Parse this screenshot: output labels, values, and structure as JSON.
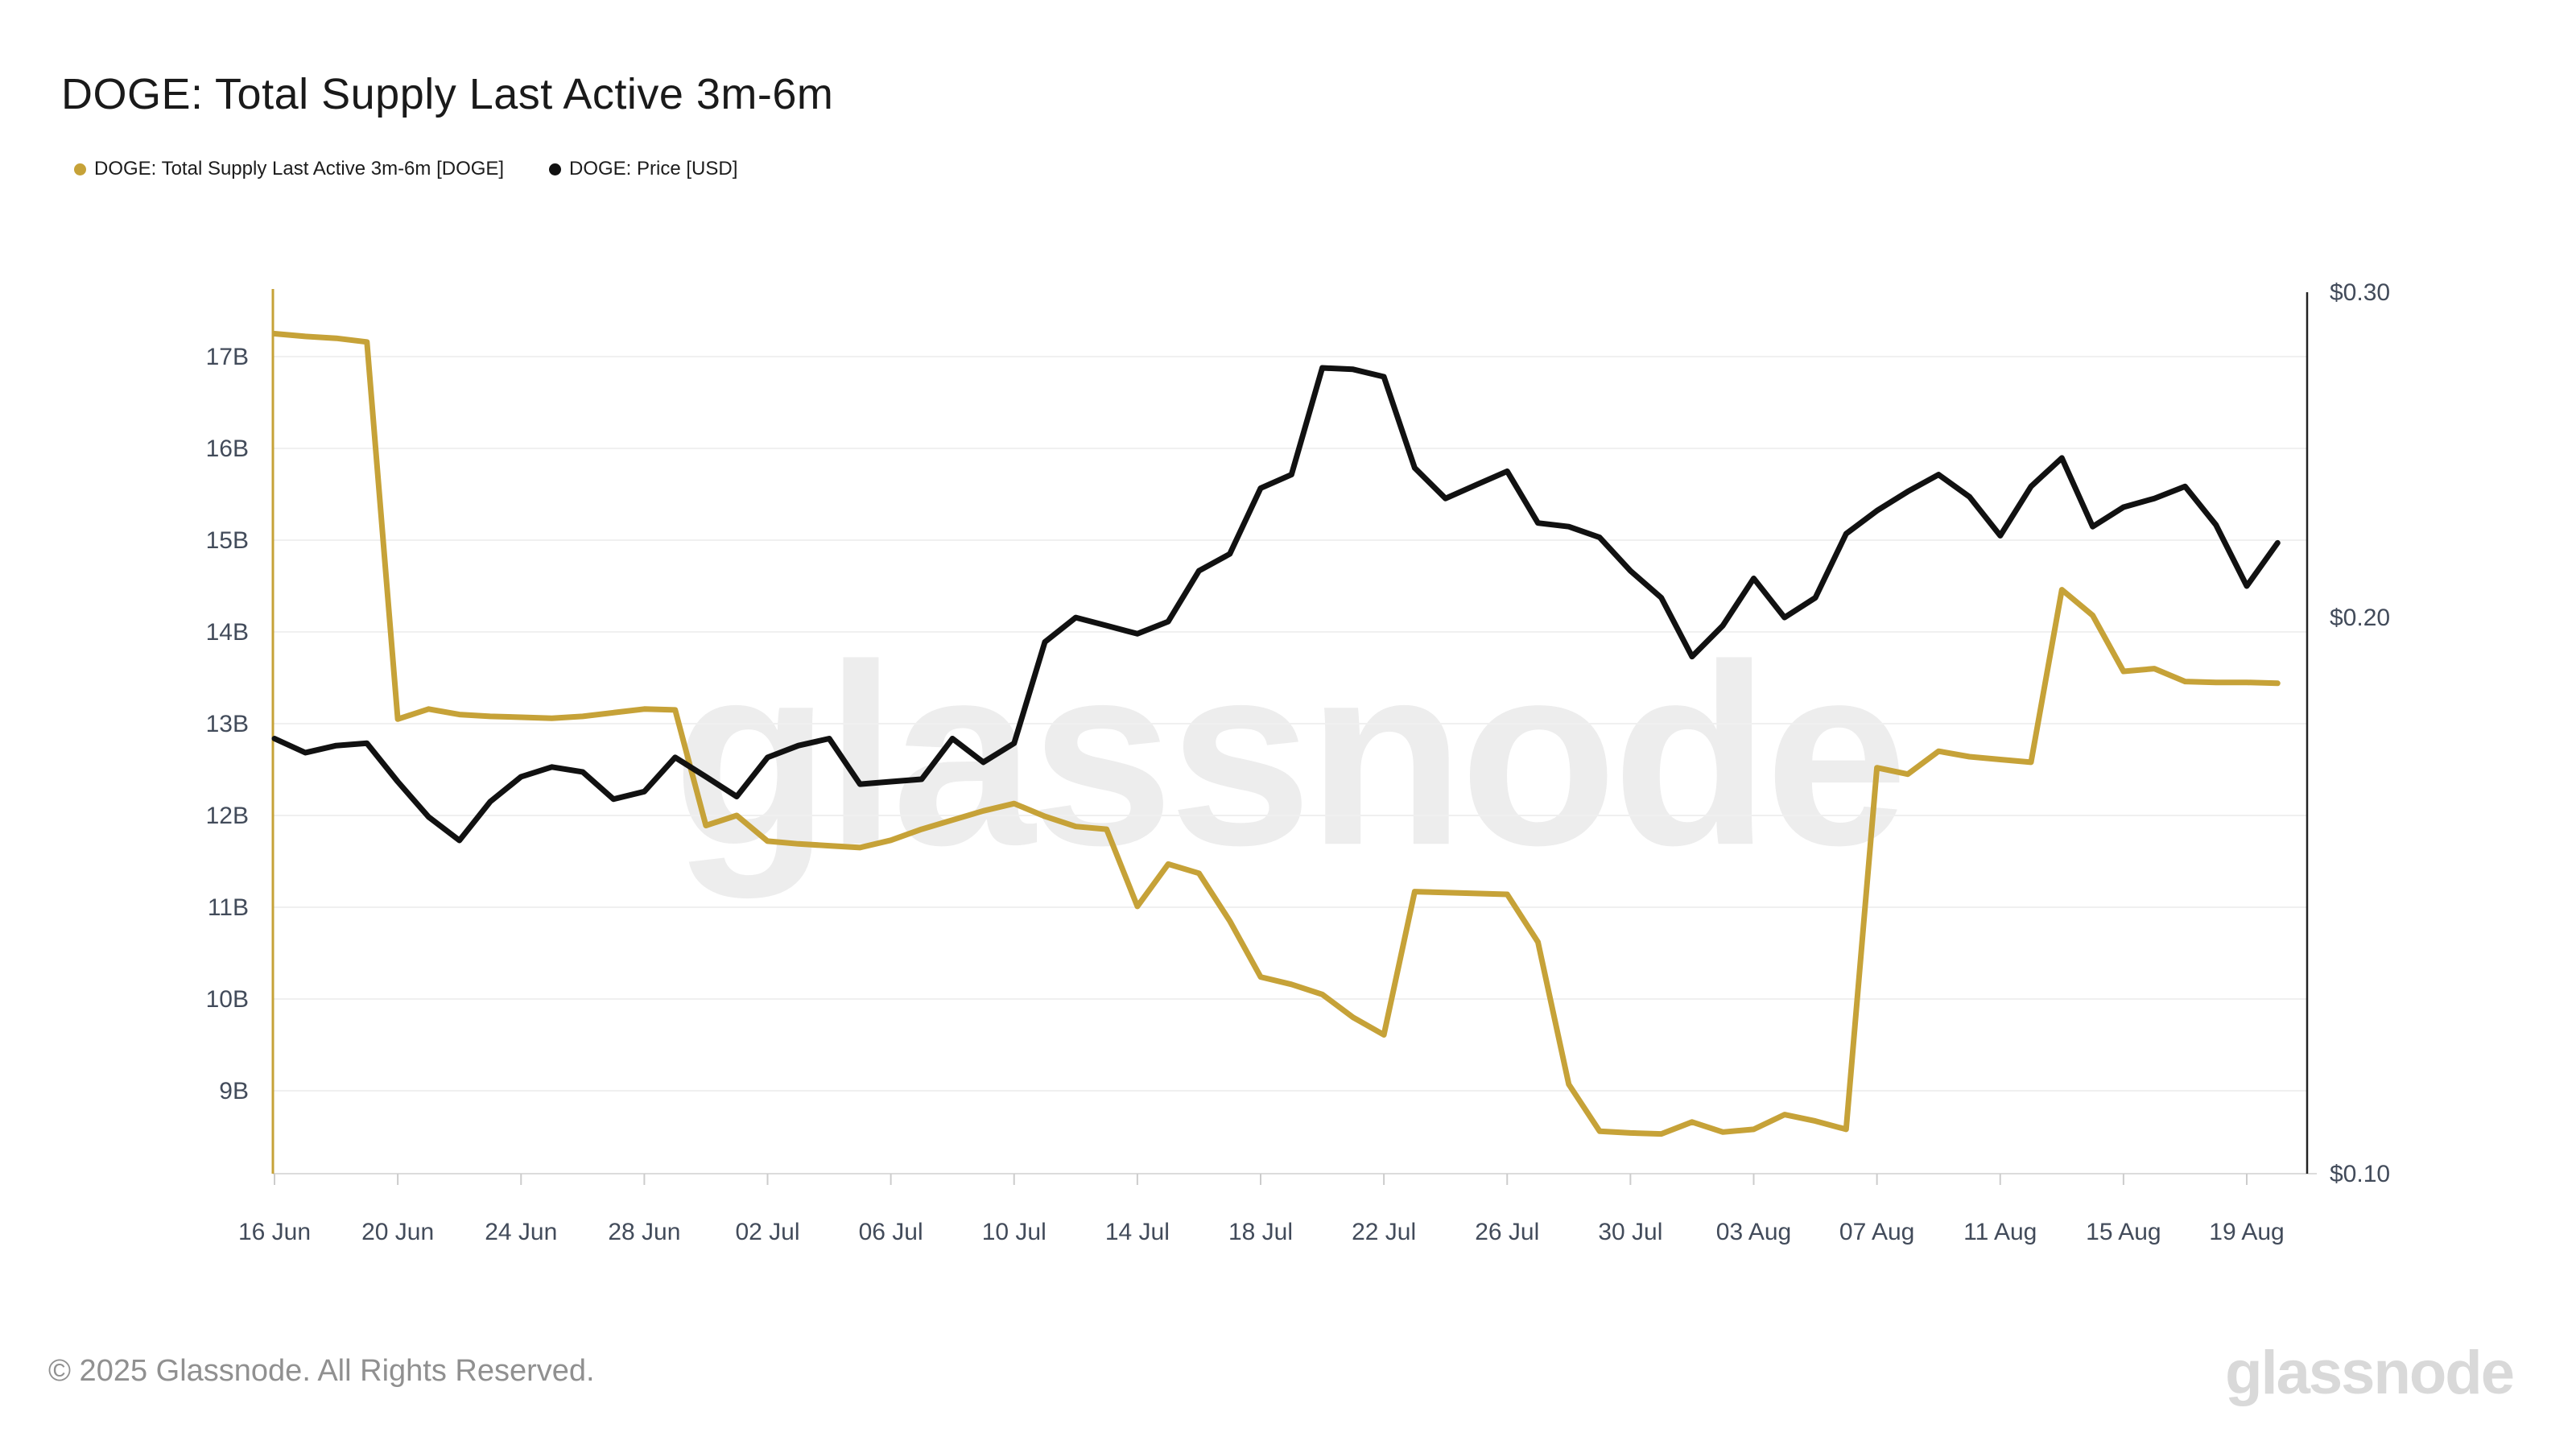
{
  "header": {
    "title": "DOGE: Total Supply Last Active 3m-6m"
  },
  "legend": {
    "items": [
      {
        "label": "DOGE: Total Supply Last Active 3m-6m [DOGE]",
        "color": "#c6a238"
      },
      {
        "label": "DOGE: Price [USD]",
        "color": "#111111"
      }
    ]
  },
  "watermark": {
    "text": "glassnode"
  },
  "footer": {
    "copyright": "© 2025 Glassnode. All Rights Reserved.",
    "brand": "glassnode"
  },
  "chart_data": {
    "type": "line",
    "title": "DOGE: Total Supply Last Active 3m-6m",
    "x": [
      "16 Jun",
      "17 Jun",
      "18 Jun",
      "19 Jun",
      "20 Jun",
      "21 Jun",
      "22 Jun",
      "23 Jun",
      "24 Jun",
      "25 Jun",
      "26 Jun",
      "27 Jun",
      "28 Jun",
      "29 Jun",
      "30 Jun",
      "01 Jul",
      "02 Jul",
      "03 Jul",
      "04 Jul",
      "05 Jul",
      "06 Jul",
      "07 Jul",
      "08 Jul",
      "09 Jul",
      "10 Jul",
      "11 Jul",
      "12 Jul",
      "13 Jul",
      "14 Jul",
      "15 Jul",
      "16 Jul",
      "17 Jul",
      "18 Jul",
      "19 Jul",
      "20 Jul",
      "21 Jul",
      "22 Jul",
      "23 Jul",
      "24 Jul",
      "25 Jul",
      "26 Jul",
      "27 Jul",
      "28 Jul",
      "29 Jul",
      "30 Jul",
      "31 Jul",
      "01 Aug",
      "02 Aug",
      "03 Aug",
      "04 Aug",
      "05 Aug",
      "06 Aug",
      "07 Aug",
      "08 Aug",
      "09 Aug",
      "10 Aug",
      "11 Aug",
      "12 Aug",
      "13 Aug",
      "14 Aug",
      "15 Aug",
      "16 Aug",
      "17 Aug",
      "18 Aug",
      "19 Aug",
      "20 Aug"
    ],
    "series": [
      {
        "name": "DOGE: Total Supply Last Active 3m-6m [DOGE]",
        "axis": "left",
        "unit": "billion DOGE",
        "color": "#c6a238",
        "values": [
          17.25,
          17.22,
          17.2,
          17.16,
          13.05,
          13.16,
          13.1,
          13.08,
          13.07,
          13.06,
          13.08,
          13.12,
          13.16,
          13.15,
          11.89,
          12.0,
          11.72,
          11.69,
          11.67,
          11.65,
          11.73,
          11.85,
          11.95,
          12.05,
          12.13,
          11.99,
          11.88,
          11.85,
          11.01,
          11.47,
          11.37,
          10.85,
          10.24,
          10.16,
          10.05,
          9.8,
          9.61,
          11.17,
          11.16,
          11.15,
          11.14,
          10.62,
          9.07,
          8.56,
          8.54,
          8.53,
          8.66,
          8.55,
          8.58,
          8.74,
          8.67,
          8.58,
          12.52,
          12.45,
          12.7,
          12.64,
          12.61,
          12.58,
          14.46,
          14.18,
          13.57,
          13.6,
          13.46,
          13.45,
          13.45,
          13.44
        ]
      },
      {
        "name": "DOGE: Price [USD]",
        "axis": "right",
        "unit": "USD",
        "color": "#111111",
        "values": [
          0.172,
          0.169,
          0.1705,
          0.171,
          0.163,
          0.156,
          0.1515,
          0.159,
          0.164,
          0.166,
          0.165,
          0.1595,
          0.161,
          0.168,
          0.164,
          0.16,
          0.168,
          0.1705,
          0.172,
          0.1625,
          0.163,
          0.1635,
          0.172,
          0.167,
          0.171,
          0.194,
          0.2,
          0.198,
          0.196,
          0.199,
          0.212,
          0.2165,
          0.235,
          0.239,
          0.273,
          0.2725,
          0.27,
          0.241,
          0.232,
          0.236,
          0.24,
          0.225,
          0.224,
          0.221,
          0.212,
          0.205,
          0.1905,
          0.198,
          0.21,
          0.2,
          0.205,
          0.222,
          0.2285,
          0.234,
          0.239,
          0.2325,
          0.2215,
          0.2355,
          0.244,
          0.224,
          0.2295,
          0.232,
          0.2355,
          0.2245,
          0.208,
          0.2195
        ]
      }
    ],
    "left_axis": {
      "scale": "linear",
      "range_top": 17.7,
      "range_bottom": 8.1,
      "ticks": [
        {
          "value": 17,
          "label": "17B"
        },
        {
          "value": 16,
          "label": "16B"
        },
        {
          "value": 15,
          "label": "15B"
        },
        {
          "value": 14,
          "label": "14B"
        },
        {
          "value": 13,
          "label": "13B"
        },
        {
          "value": 12,
          "label": "12B"
        },
        {
          "value": 11,
          "label": "11B"
        },
        {
          "value": 10,
          "label": "10B"
        },
        {
          "value": 9,
          "label": "9B"
        }
      ]
    },
    "right_axis": {
      "scale": "log",
      "range_top": 0.3,
      "range_bottom": 0.1,
      "ticks": [
        {
          "value": 0.3,
          "label": "$0.30"
        },
        {
          "value": 0.2,
          "label": "$0.20"
        },
        {
          "value": 0.1,
          "label": "$0.10"
        }
      ]
    },
    "x_tick_every_days": 4,
    "grid": "horizontal",
    "legend_position": "top-left"
  }
}
